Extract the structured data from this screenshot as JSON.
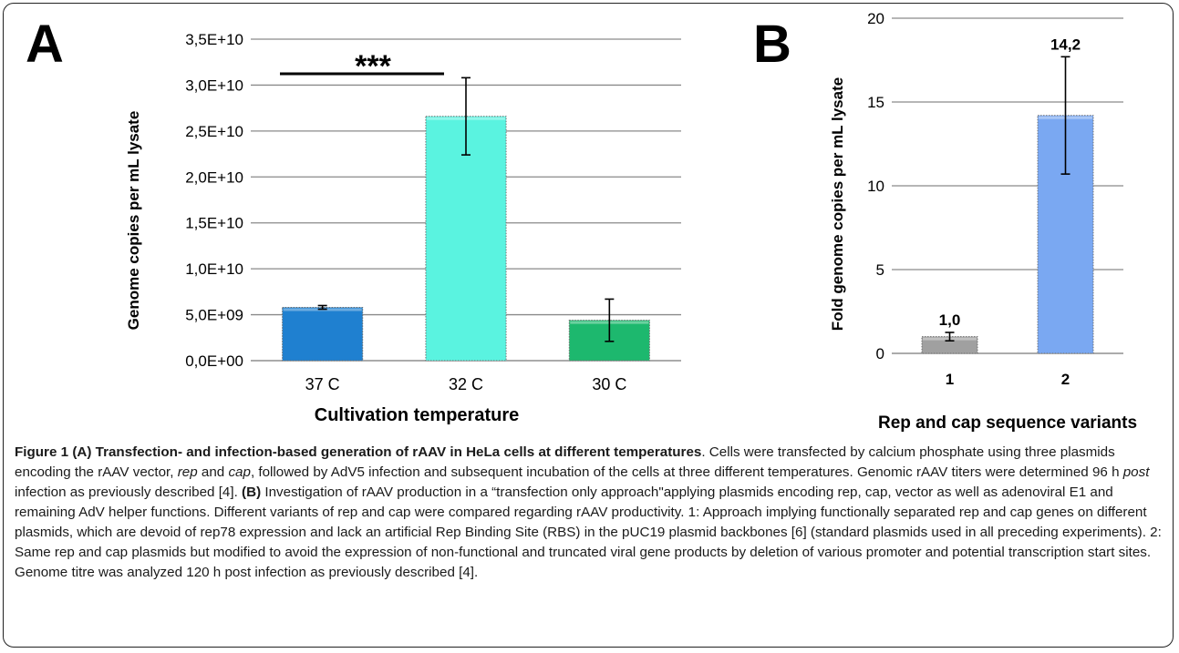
{
  "chart_data": [
    {
      "panel_label": "A",
      "type": "bar",
      "categories": [
        "37  C",
        "32  C",
        "30  C"
      ],
      "values": [
        5800000000.0,
        26600000000.0,
        4400000000.0
      ],
      "error": [
        200000000.0,
        4200000000.0,
        2300000000.0
      ],
      "colors": [
        "#1f80d0",
        "#5af3e0",
        "#1db86e"
      ],
      "xlabel": "Cultivation temperature",
      "ylabel": "Genome copies per mL lysate",
      "ylim": [
        0,
        35000000000.0
      ],
      "yticks": [
        0,
        5000000000.0,
        10000000000.0,
        15000000000.0,
        20000000000.0,
        25000000000.0,
        30000000000.0,
        35000000000.0
      ],
      "ytick_labels": [
        "0,0E+00",
        "5,0E+09",
        "1,0E+10",
        "1,5E+10",
        "2,0E+10",
        "2,5E+10",
        "3,0E+10",
        "3,5E+10"
      ],
      "grid": true,
      "significance": {
        "from": 0,
        "to": 1,
        "label": "***"
      }
    },
    {
      "panel_label": "B",
      "type": "bar",
      "categories": [
        "1",
        "2"
      ],
      "values": [
        1.0,
        14.2
      ],
      "error": [
        0.25,
        3.5
      ],
      "data_labels": [
        "1,0",
        "14,2"
      ],
      "colors": [
        "#a0a0a0",
        "#7aa8f2"
      ],
      "xlabel": "Rep and cap sequence variants",
      "ylabel": "Fold genome copies per mL lysate",
      "ylim": [
        0,
        20
      ],
      "yticks": [
        0,
        5,
        10,
        15,
        20
      ],
      "ytick_labels": [
        "0",
        "5",
        "10",
        "15",
        "20"
      ],
      "grid": true
    }
  ],
  "caption": {
    "fig_label": "Figure 1",
    "part_a_label": "(A)",
    "part_a_title": "Transfection- and infection-based generation of rAAV in HeLa cells at different temperatures",
    "part_a_text_1": ". Cells were transfected by calcium phosphate using three plasmids encoding the rAAV vector, ",
    "rep_word": "rep",
    "and_word": " and ",
    "cap_word": "cap",
    "part_a_text_2": ", followed by AdV5 infection and subsequent incubation of the cells at three different temperatures. Genomic rAAV titers were determined 96 h ",
    "post_word": "post",
    "part_a_text_3": " infection as previously described [4]. ",
    "part_b_label": "(B)",
    "part_b_text": " Investigation of rAAV production in a “transfection only approach\"applying plasmids encoding rep, cap, vector as well as adenoviral E1 and remaining AdV helper functions. Different variants of rep and cap were compared regarding rAAV productivity. 1: Approach implying functionally separated rep and cap genes on different plasmids, which are devoid of rep78 expression and lack an artificial Rep Binding Site (RBS) in the pUC19 plasmid backbones [6] (standard plasmids used in all preceding experiments). 2: Same rep and cap plasmids but modified to avoid the expression of non-functional and truncated viral gene products by deletion of various promoter and potential transcription start sites. Genome titre was analyzed 120 h post infection as previously described [4]."
  }
}
